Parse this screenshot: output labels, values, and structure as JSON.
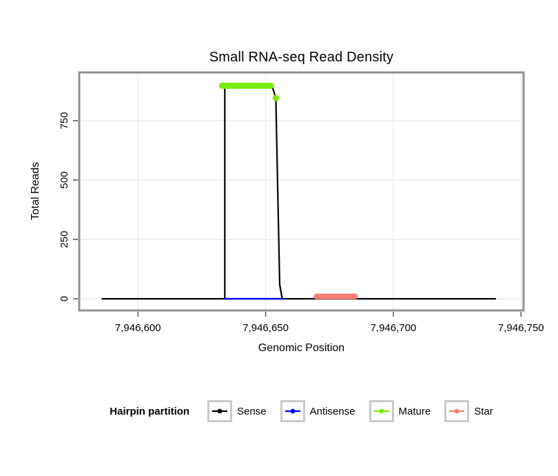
{
  "title": "Small RNA-seq Read Density",
  "axes": {
    "xlabel": "Genomic Position",
    "ylabel": "Total Reads"
  },
  "legend": {
    "title": "Hairpin partition",
    "items": [
      {
        "label": "Sense",
        "color": "#000000"
      },
      {
        "label": "Antisense",
        "color": "#0000EE"
      },
      {
        "label": "Mature",
        "color": "#76EE00"
      },
      {
        "label": "Star",
        "color": "#FA8072"
      }
    ]
  },
  "chart_data": {
    "type": "line",
    "title": "Small RNA-seq Read Density",
    "xlabel": "Genomic Position",
    "ylabel": "Total Reads",
    "xlim": [
      7946577,
      7946751
    ],
    "ylim": [
      -49,
      953
    ],
    "grid": true,
    "legend_position": "bottom",
    "xticks": [
      7946600,
      7946650,
      7946700,
      7946750
    ],
    "xtick_labels": [
      "7,946,600",
      "7,946,650",
      "7,946,700",
      "7,946,750"
    ],
    "yticks": [
      0,
      250,
      500,
      750
    ],
    "ytick_labels": [
      "0",
      "250",
      "500",
      "750"
    ],
    "series": [
      {
        "name": "Sense",
        "color": "#000000",
        "mode": "line",
        "width": 2.2,
        "points": [
          [
            7946586,
            0
          ],
          [
            7946634,
            0
          ],
          [
            7946634,
            897
          ],
          [
            7946652.5,
            897
          ],
          [
            7946654,
            845
          ],
          [
            7946655.5,
            60
          ],
          [
            7946656.5,
            0
          ],
          [
            7946740,
            0
          ]
        ]
      },
      {
        "name": "Antisense",
        "color": "#0000EE",
        "mode": "line",
        "width": 2.5,
        "points": [
          [
            7946634,
            0
          ],
          [
            7946657,
            0
          ]
        ]
      },
      {
        "name": "Mature",
        "color": "#76EE00",
        "mode": "points",
        "radius": 4.6,
        "points": [
          [
            7946633,
            897
          ],
          [
            7946634,
            897
          ],
          [
            7946635,
            897
          ],
          [
            7946636,
            897
          ],
          [
            7946637,
            897
          ],
          [
            7946638,
            897
          ],
          [
            7946639,
            897
          ],
          [
            7946640,
            897
          ],
          [
            7946641,
            897
          ],
          [
            7946642,
            897
          ],
          [
            7946643,
            897
          ],
          [
            7946644,
            897
          ],
          [
            7946645,
            897
          ],
          [
            7946646,
            897
          ],
          [
            7946647,
            897
          ],
          [
            7946648,
            897
          ],
          [
            7946649,
            897
          ],
          [
            7946650,
            897
          ],
          [
            7946651,
            897
          ],
          [
            7946652,
            897
          ],
          [
            7946654,
            845
          ]
        ]
      },
      {
        "name": "Star",
        "color": "#FA8072",
        "mode": "points",
        "radius": 4.2,
        "points": [
          [
            7946670,
            10
          ],
          [
            7946671,
            10
          ],
          [
            7946672,
            10
          ],
          [
            7946673,
            10
          ],
          [
            7946674,
            10
          ],
          [
            7946675,
            10
          ],
          [
            7946676,
            10
          ],
          [
            7946677,
            10
          ],
          [
            7946678,
            10
          ],
          [
            7946679,
            10
          ],
          [
            7946680,
            10
          ],
          [
            7946681,
            10
          ],
          [
            7946682,
            10
          ],
          [
            7946683,
            10
          ],
          [
            7946684,
            10
          ],
          [
            7946685,
            10
          ]
        ]
      }
    ]
  }
}
